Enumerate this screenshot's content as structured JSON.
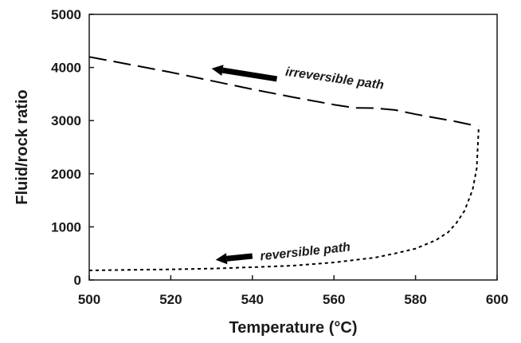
{
  "chart_data": {
    "type": "line",
    "xlabel": "Temperature (°C)",
    "ylabel": "Fluid/rock ratio",
    "xlim": [
      500,
      600
    ],
    "ylim": [
      0,
      5000
    ],
    "xticks": [
      500,
      520,
      540,
      560,
      580,
      600
    ],
    "yticks": [
      0,
      1000,
      2000,
      3000,
      4000,
      5000
    ],
    "xtick_labels": [
      "500",
      "520",
      "540",
      "560",
      "580",
      "600"
    ],
    "ytick_labels": [
      "0",
      "1000",
      "2000",
      "3000",
      "4000",
      "5000"
    ],
    "grid": false,
    "series": [
      {
        "style": "dashed",
        "x": [
          500,
          520,
          540,
          550,
          560,
          565,
          570,
          575,
          580,
          590,
          595
        ],
        "y": [
          4200,
          3910,
          3590,
          3440,
          3300,
          3240,
          3235,
          3200,
          3120,
          2980,
          2900
        ]
      },
      {
        "style": "dotted",
        "x": [
          500,
          510,
          520,
          530,
          540,
          550,
          560,
          570,
          575,
          580,
          585,
          588,
          590,
          592,
          594,
          595,
          595.5
        ],
        "y": [
          180,
          190,
          200,
          215,
          240,
          270,
          330,
          420,
          500,
          590,
          750,
          900,
          1070,
          1300,
          1700,
          2100,
          2900
        ]
      }
    ],
    "annotations": [
      {
        "text": "irreversible path",
        "x": 548,
        "y": 3850,
        "arrow_from": [
          546,
          3785
        ],
        "arrow_to": [
          530,
          3980
        ],
        "rotation": 8
      },
      {
        "text": "reversible path",
        "x": 542,
        "y": 370,
        "arrow_from": [
          540,
          450
        ],
        "arrow_to": [
          531,
          380
        ],
        "rotation": -6
      }
    ]
  }
}
